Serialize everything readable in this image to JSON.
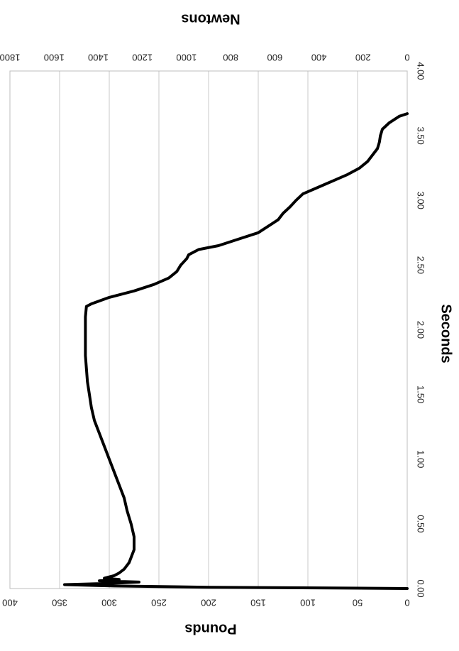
{
  "chart_data": {
    "type": "line",
    "orientation": "rotated-90-clockwise",
    "xlabel": "Seconds",
    "ylabel_primary": "Pounds",
    "ylabel_secondary": "Newtons",
    "xlim": [
      0,
      4
    ],
    "ylim_primary": [
      0,
      400
    ],
    "ylim_secondary": [
      0,
      1800
    ],
    "grid": true,
    "x_ticks": [
      "0.00",
      "0.50",
      "1.00",
      "1.50",
      "2.00",
      "2.50",
      "3.00",
      "3.50",
      "4.00"
    ],
    "y_ticks_primary": [
      "0",
      "50",
      "100",
      "150",
      "200",
      "250",
      "300",
      "350",
      "400"
    ],
    "y_ticks_secondary": [
      "0",
      "200",
      "400",
      "600",
      "800",
      "1000",
      "1200",
      "1400",
      "1600",
      "1800"
    ],
    "series": [
      {
        "color": "#000000",
        "x": [
          0.0,
          0.005,
          0.01,
          0.02,
          0.03,
          0.04,
          0.05,
          0.06,
          0.07,
          0.08,
          0.1,
          0.12,
          0.15,
          0.2,
          0.3,
          0.4,
          0.5,
          0.6,
          0.7,
          0.8,
          0.9,
          1.0,
          1.1,
          1.2,
          1.3,
          1.4,
          1.5,
          1.6,
          1.7,
          1.8,
          1.9,
          2.0,
          2.1,
          2.18,
          2.2,
          2.25,
          2.3,
          2.35,
          2.4,
          2.45,
          2.5,
          2.55,
          2.58,
          2.62,
          2.65,
          2.7,
          2.75,
          2.8,
          2.85,
          2.9,
          2.95,
          3.0,
          3.05,
          3.1,
          3.15,
          3.2,
          3.25,
          3.3,
          3.35,
          3.4,
          3.45,
          3.5,
          3.55,
          3.6,
          3.65,
          3.67
        ],
        "y": [
          0,
          90,
          200,
          295,
          345,
          300,
          270,
          310,
          290,
          305,
          295,
          290,
          285,
          280,
          275,
          275,
          278,
          282,
          285,
          290,
          295,
          300,
          305,
          310,
          315,
          318,
          320,
          322,
          323,
          324,
          324,
          324,
          324,
          323,
          318,
          300,
          275,
          255,
          240,
          232,
          228,
          222,
          220,
          210,
          190,
          170,
          150,
          140,
          130,
          125,
          118,
          112,
          105,
          90,
          75,
          60,
          48,
          40,
          35,
          30,
          28,
          27,
          25,
          18,
          8,
          0
        ]
      }
    ]
  }
}
